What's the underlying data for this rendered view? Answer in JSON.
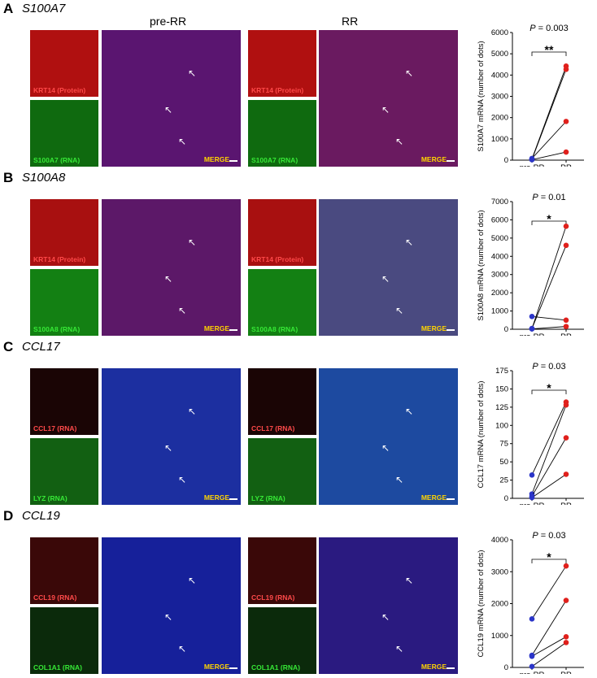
{
  "conditions": {
    "pre": "pre-RR",
    "post": "RR"
  },
  "rows": [
    {
      "letter": "A",
      "gene": "S100A7",
      "marker_top": "KRT14 (Protein)",
      "marker_bottom": "S100A7 (RNA)",
      "merge_label": "MERGE",
      "show_condition_headers": true,
      "colors": {
        "top": "#b01010",
        "bottom": "#0f6a0f",
        "merge_pre": "#5a1570",
        "merge_post": "#6a1a60"
      }
    },
    {
      "letter": "B",
      "gene": "S100A8",
      "marker_top": "KRT14 (Protein)",
      "marker_bottom": "S100A8 (RNA)",
      "merge_label": "MERGE",
      "show_condition_headers": false,
      "colors": {
        "top": "#a81010",
        "bottom": "#138013",
        "merge_pre": "#5c1868",
        "merge_post": "#4a4a80"
      }
    },
    {
      "letter": "C",
      "gene": "CCL17",
      "marker_top": "CCL17 (RNA)",
      "marker_bottom": "LYZ (RNA)",
      "merge_label": "MERGE",
      "show_condition_headers": false,
      "colors": {
        "top": "#1a0505",
        "bottom": "#126012",
        "merge_pre": "#1c2fa0",
        "merge_post": "#1d4aa0"
      }
    },
    {
      "letter": "D",
      "gene": "CCL19",
      "marker_top": "CCL19 (RNA)",
      "marker_bottom": "COL1A1 (RNA)",
      "merge_label": "MERGE",
      "show_condition_headers": false,
      "colors": {
        "top": "#3a0808",
        "bottom": "#0b2a0b",
        "merge_pre": "#16209a",
        "merge_post": "#2a1a80"
      }
    }
  ],
  "chart_data": [
    {
      "type": "scatter",
      "ylabel": "S100A7 mRNA (number of dots)",
      "categories": [
        "pre-RR",
        "RR"
      ],
      "ylim": [
        0,
        6000
      ],
      "yticks": [
        0,
        1000,
        2000,
        3000,
        4000,
        5000,
        6000
      ],
      "stat": {
        "p_prefix": "P",
        "p_value": " = 0.003",
        "stars": "**"
      },
      "pairs": [
        [
          50,
          4420
        ],
        [
          30,
          4270
        ],
        [
          80,
          1820
        ],
        [
          20,
          380
        ]
      ],
      "colors": {
        "pre": "#2b35c8",
        "post": "#e0201c"
      }
    },
    {
      "type": "scatter",
      "ylabel": "S100A8 mRNA (number of dots)",
      "categories": [
        "pre-RR",
        "RR"
      ],
      "ylim": [
        0,
        7000
      ],
      "yticks": [
        0,
        1000,
        2000,
        3000,
        4000,
        5000,
        6000,
        7000
      ],
      "stat": {
        "p_prefix": "P",
        "p_value": " = 0.01",
        "stars": "*"
      },
      "pairs": [
        [
          30,
          5650
        ],
        [
          40,
          4600
        ],
        [
          700,
          500
        ],
        [
          20,
          150
        ]
      ],
      "colors": {
        "pre": "#2b35c8",
        "post": "#e0201c"
      }
    },
    {
      "type": "scatter",
      "ylabel": "CCL17 mRNA (number of dots)",
      "categories": [
        "pre-RR",
        "RR"
      ],
      "ylim": [
        0,
        175
      ],
      "yticks": [
        0,
        25,
        50,
        75,
        100,
        125,
        150,
        175
      ],
      "stat": {
        "p_prefix": "P",
        "p_value": " = 0.03",
        "stars": "*"
      },
      "pairs": [
        [
          32,
          132
        ],
        [
          6,
          128
        ],
        [
          3,
          83
        ],
        [
          1,
          33
        ]
      ],
      "colors": {
        "pre": "#2b35c8",
        "post": "#e0201c"
      }
    },
    {
      "type": "scatter",
      "ylabel": "CCL19 mRNA (number of dots)",
      "categories": [
        "pre-RR",
        "RR"
      ],
      "ylim": [
        0,
        4000
      ],
      "yticks": [
        0,
        1000,
        2000,
        3000,
        4000
      ],
      "stat": {
        "p_prefix": "P",
        "p_value": " = 0.03",
        "stars": "*"
      },
      "pairs": [
        [
          1520,
          3180
        ],
        [
          380,
          2100
        ],
        [
          350,
          960
        ],
        [
          30,
          780
        ]
      ],
      "colors": {
        "pre": "#2b35c8",
        "post": "#e0201c"
      }
    }
  ]
}
